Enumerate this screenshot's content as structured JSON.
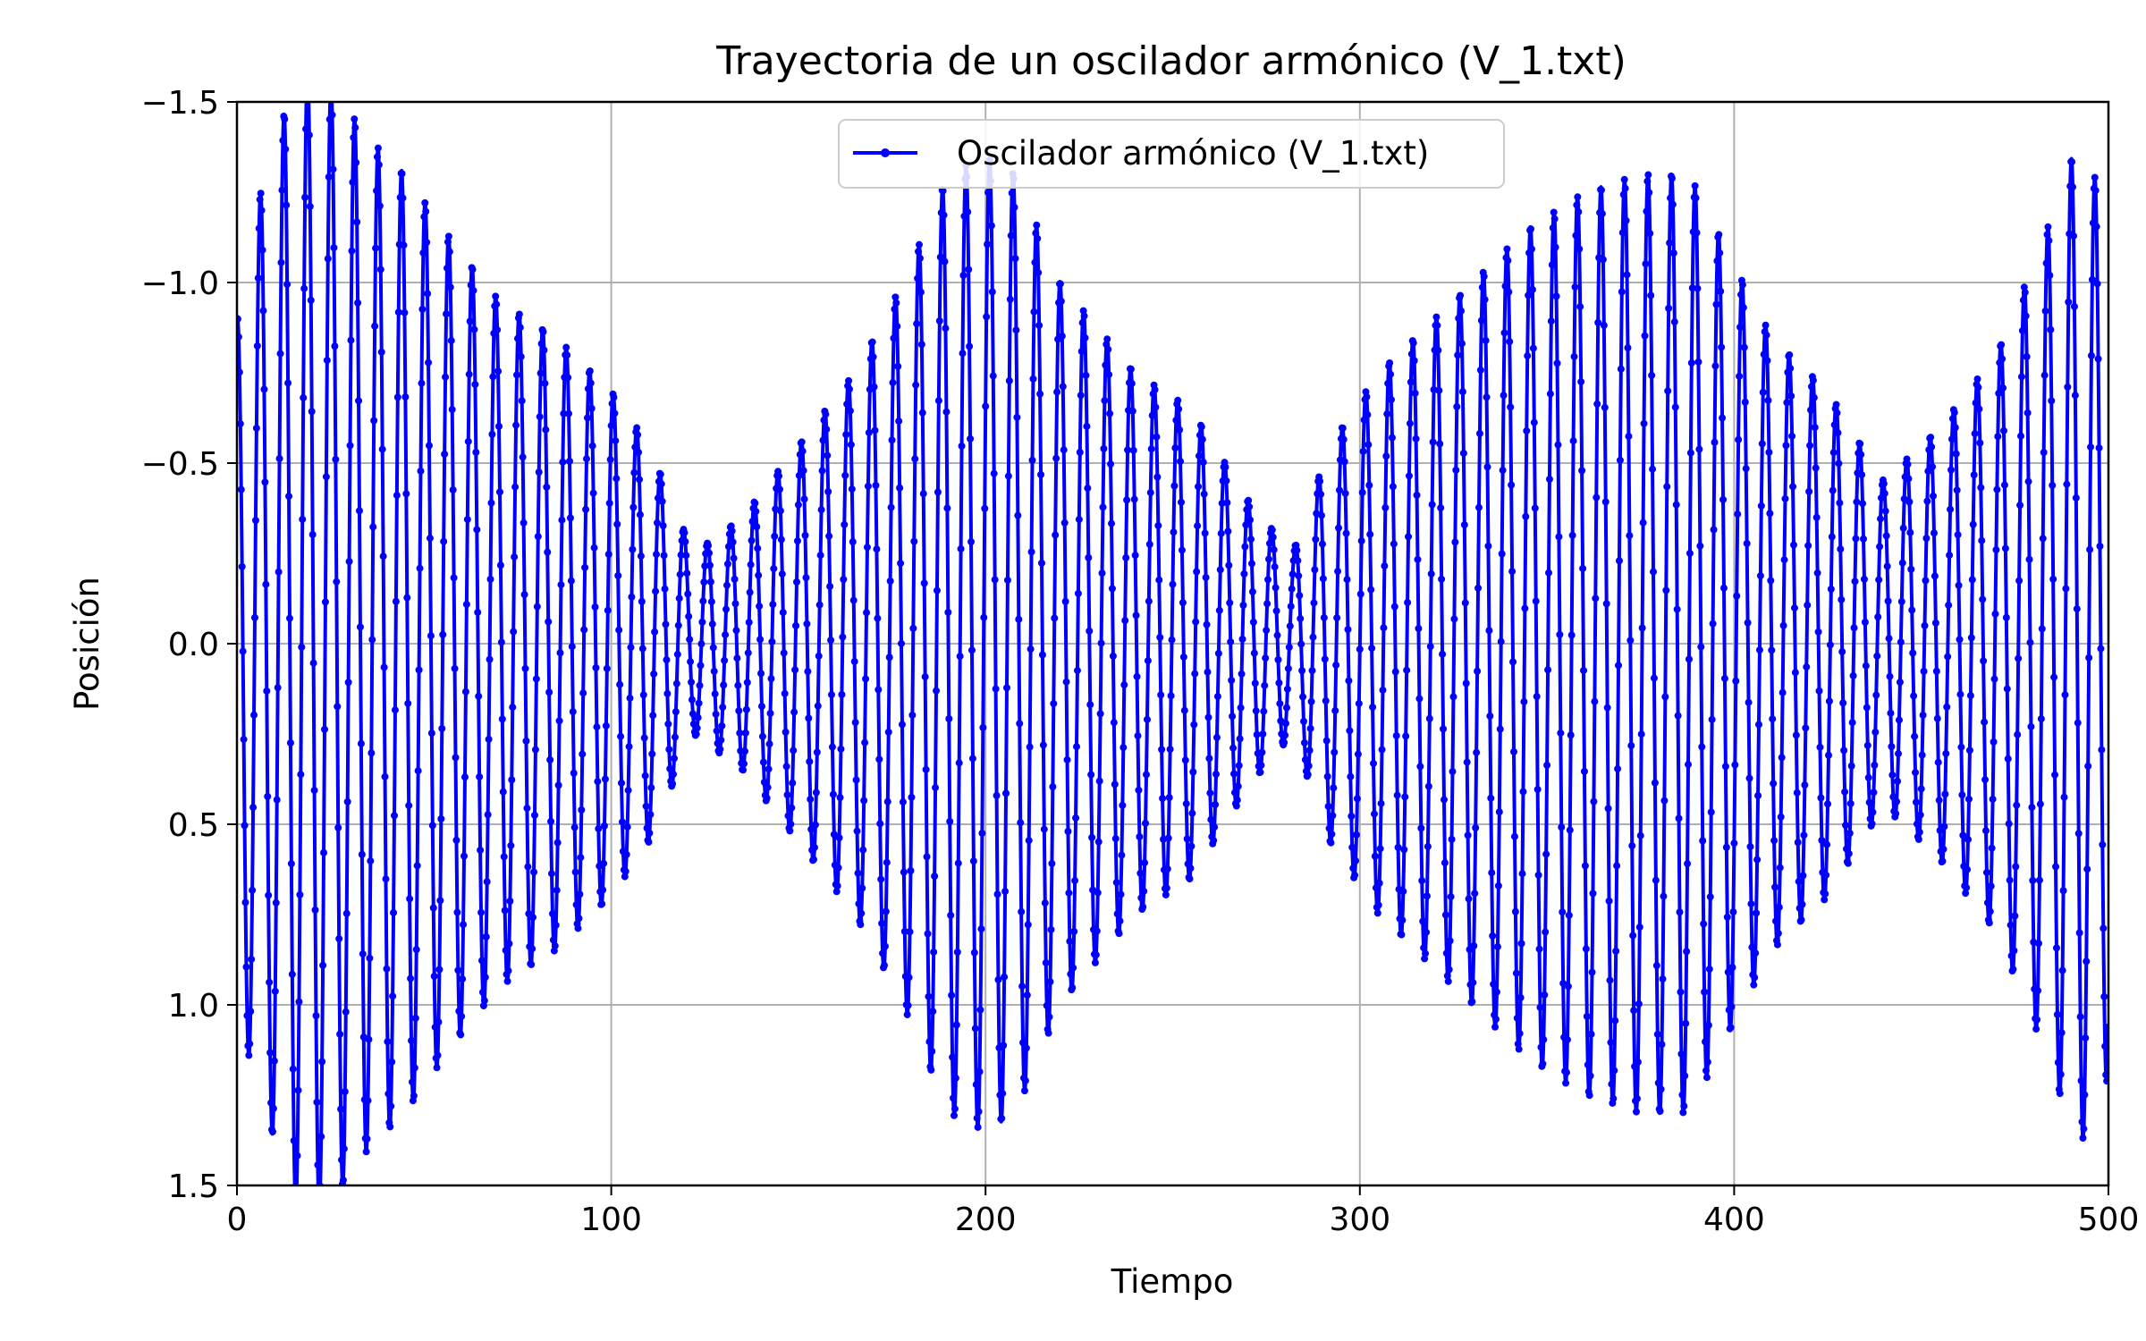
{
  "chart_data": {
    "type": "line",
    "title": "Trayectoria de un oscilador armónico (V_1.txt)",
    "xlabel": "Tiempo",
    "ylabel": "Posición",
    "xlim": [
      0,
      500
    ],
    "ylim": [
      1.5,
      -1.5
    ],
    "y_axis_inverted": true,
    "grid": true,
    "legend_placement": "upper center",
    "x_ticks": [
      "0",
      "100",
      "200",
      "300",
      "400",
      "500"
    ],
    "y_ticks": [
      "−1.5",
      "−1.0",
      "−0.5",
      "0.0",
      "0.5",
      "1.0",
      "1.5"
    ],
    "x_tick_values": [
      0,
      100,
      200,
      300,
      400,
      500
    ],
    "y_tick_values": [
      -1.5,
      -1.0,
      -0.5,
      0.0,
      0.5,
      1.0,
      1.5
    ],
    "series": [
      {
        "name": "Oscilador armónico (V_1.txt)",
        "color": "#0000ff",
        "marker": "dot",
        "x_range": [
          0,
          500
        ],
        "period": 6.2832,
        "envelope": {
          "t": [
            0,
            2,
            15,
            19,
            25,
            35,
            45,
            55,
            70,
            85,
            100,
            110,
            122,
            135,
            150,
            165,
            178,
            190,
            200,
            208,
            220,
            240,
            255,
            270,
            282,
            292,
            305,
            325,
            345,
            360,
            375,
            388,
            400,
            410,
            425,
            440,
            455,
            470,
            482,
            492,
            500
          ],
          "amplitude": [
            0.9,
            1.1,
            1.55,
            1.58,
            1.55,
            1.4,
            1.3,
            1.15,
            0.95,
            0.85,
            0.7,
            0.55,
            0.25,
            0.35,
            0.55,
            0.75,
            1.0,
            1.3,
            1.35,
            1.3,
            1.0,
            0.75,
            0.65,
            0.4,
            0.25,
            0.55,
            0.75,
            0.95,
            1.15,
            1.25,
            1.3,
            1.3,
            1.05,
            0.85,
            0.7,
            0.45,
            0.6,
            0.8,
            1.1,
            1.4,
            1.2
          ]
        }
      }
    ]
  }
}
